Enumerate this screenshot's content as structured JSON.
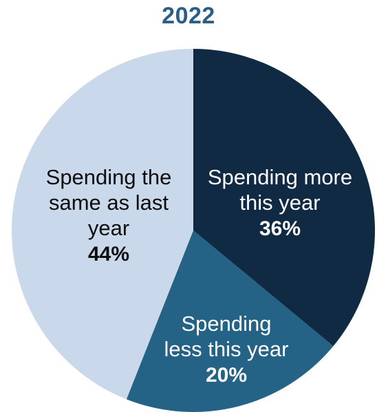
{
  "chart_data": {
    "type": "pie",
    "title": "2022",
    "slices": [
      {
        "label_lines": [
          "Spending more",
          "this year"
        ],
        "value": 36,
        "value_label": "36%",
        "color": "#102a43",
        "text_color": "#ffffff"
      },
      {
        "label_lines": [
          "Spending",
          "less this year"
        ],
        "value": 20,
        "value_label": "20%",
        "color": "#256386",
        "text_color": "#ffffff"
      },
      {
        "label_lines": [
          "Spending the",
          "same as last",
          "year"
        ],
        "value": 44,
        "value_label": "44%",
        "color": "#c9d8ea",
        "text_color": "#0d0d0d"
      }
    ]
  }
}
